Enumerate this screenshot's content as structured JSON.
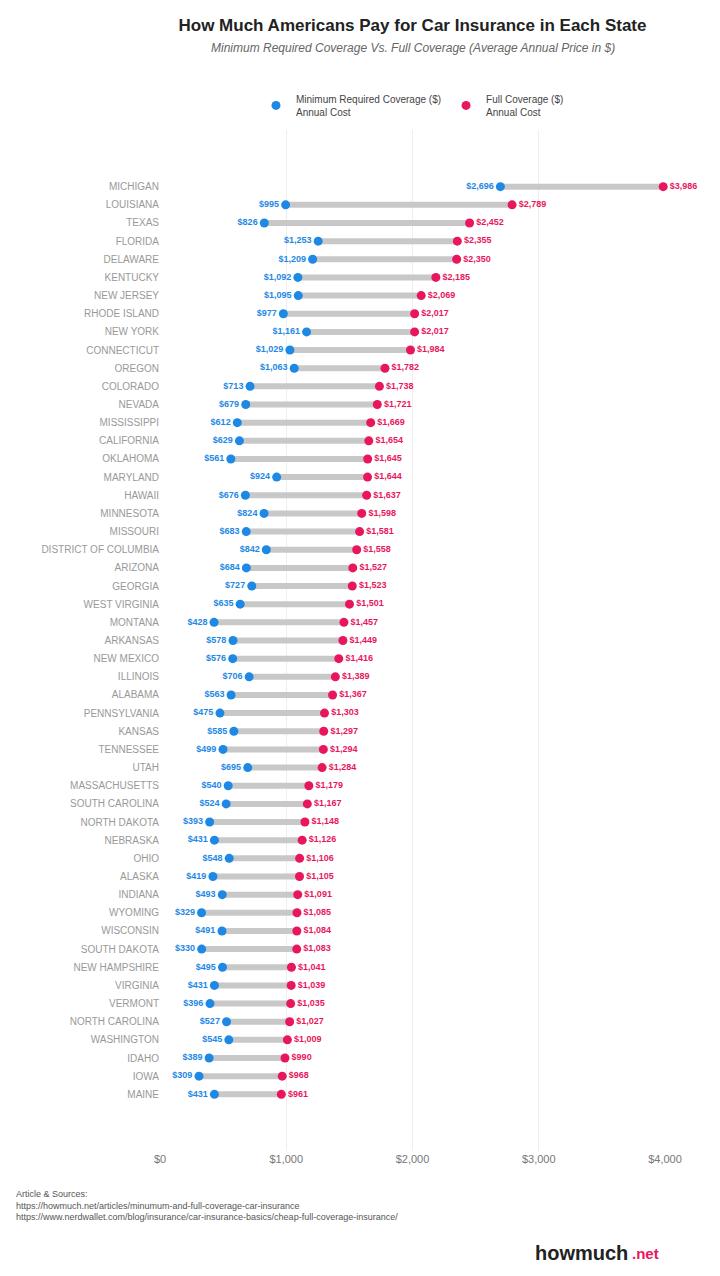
{
  "chart_data": {
    "type": "dumbbell",
    "title": "How Much Americans Pay for Car Insurance in Each State",
    "subtitle": "Minimum Required Coverage Vs. Full Coverage (Average Annual Price in $)",
    "orientation": "horizontal",
    "color": "#c8c8c8",
    "categories": [
      "MICHIGAN",
      "LOUISIANA",
      "TEXAS",
      "FLORIDA",
      "DELAWARE",
      "KENTUCKY",
      "NEW JERSEY",
      "RHODE ISLAND",
      "NEW YORK",
      "CONNECTICUT",
      "OREGON",
      "COLORADO",
      "NEVADA",
      "MISSISSIPPI",
      "CALIFORNIA",
      "OKLAHOMA",
      "MARYLAND",
      "HAWAII",
      "MINNESOTA",
      "MISSOURI",
      "DISTRICT OF COLUMBIA",
      "ARIZONA",
      "GEORGIA",
      "WEST VIRGINIA",
      "MONTANA",
      "ARKANSAS",
      "NEW MEXICO",
      "ILLINOIS",
      "ALABAMA",
      "PENNSYLVANIA",
      "KANSAS",
      "TENNESSEE",
      "UTAH",
      "MASSACHUSETTS",
      "SOUTH CAROLINA",
      "NORTH DAKOTA",
      "NEBRASKA",
      "OHIO",
      "ALASKA",
      "INDIANA",
      "WYOMING",
      "WISCONSIN",
      "SOUTH DAKOTA",
      "NEW HAMPSHIRE",
      "VIRGINIA",
      "VERMONT",
      "NORTH CAROLINA",
      "WASHINGTON",
      "IDAHO",
      "IOWA",
      "MAINE"
    ],
    "series": [
      {
        "name": "Minimum Required Coverage ($)\nAnnual Cost",
        "color": "#1e88e5",
        "values": [
          2696,
          995,
          826,
          1253,
          1209,
          1092,
          1095,
          977,
          1161,
          1029,
          1063,
          713,
          679,
          612,
          629,
          561,
          924,
          676,
          824,
          683,
          842,
          684,
          727,
          635,
          428,
          578,
          576,
          706,
          563,
          475,
          585,
          499,
          695,
          540,
          524,
          393,
          431,
          548,
          419,
          493,
          329,
          491,
          330,
          495,
          431,
          396,
          527,
          545,
          389,
          309,
          431
        ],
        "value_labels": [
          "$2,696",
          "$995",
          "$826",
          "$1,253",
          "$1,209",
          "$1,092",
          "$1,095",
          "$977",
          "$1,161",
          "$1,029",
          "$1,063",
          "$713",
          "$679",
          "$612",
          "$629",
          "$561",
          "$924",
          "$676",
          "$824",
          "$683",
          "$842",
          "$684",
          "$727",
          "$635",
          "$428",
          "$578",
          "$576",
          "$706",
          "$563",
          "$475",
          "$585",
          "$499",
          "$695",
          "$540",
          "$524",
          "$393",
          "$431",
          "$548",
          "$419",
          "$493",
          "$329",
          "$491",
          "$330",
          "$495",
          "$431",
          "$396",
          "$527",
          "$545",
          "$389",
          "$309",
          "$431"
        ]
      },
      {
        "name": "Full Coverage ($)\nAnnual Cost",
        "color": "#e8175d",
        "values": [
          3986,
          2789,
          2452,
          2355,
          2350,
          2185,
          2069,
          2017,
          2017,
          1984,
          1782,
          1738,
          1721,
          1669,
          1654,
          1645,
          1644,
          1637,
          1598,
          1581,
          1558,
          1527,
          1523,
          1501,
          1457,
          1449,
          1416,
          1389,
          1367,
          1303,
          1297,
          1294,
          1284,
          1179,
          1167,
          1148,
          1126,
          1106,
          1105,
          1091,
          1085,
          1084,
          1083,
          1041,
          1039,
          1035,
          1027,
          1009,
          990,
          968,
          961
        ],
        "value_labels": [
          "$3,986",
          "$2,789",
          "$2,452",
          "$2,355",
          "$2,350",
          "$2,185",
          "$2,069",
          "$2,017",
          "$2,017",
          "$1,984",
          "$1,782",
          "$1,738",
          "$1,721",
          "$1,669",
          "$1,654",
          "$1,645",
          "$1,644",
          "$1,637",
          "$1,598",
          "$1,581",
          "$1,558",
          "$1,527",
          "$1,523",
          "$1,501",
          "$1,457",
          "$1,449",
          "$1,416",
          "$1,389",
          "$1,367",
          "$1,303",
          "$1,297",
          "$1,294",
          "$1,284",
          "$1,179",
          "$1,167",
          "$1,148",
          "$1,126",
          "$1,106",
          "$1,105",
          "$1,091",
          "$1,085",
          "$1,084",
          "$1,083",
          "$1,041",
          "$1,039",
          "$1,035",
          "$1,027",
          "$1,009",
          "$990",
          "$968",
          "$961"
        ]
      }
    ],
    "xlim": [
      0,
      4000
    ],
    "xticks": [
      {
        "value": 0,
        "label": "$0"
      },
      {
        "value": 1000,
        "label": "$1,000"
      },
      {
        "value": 2000,
        "label": "$2,000"
      },
      {
        "value": 3000,
        "label": "$3,000"
      },
      {
        "value": 4000,
        "label": "$4,000"
      }
    ],
    "grid": true,
    "legend": "top",
    "data_labels": true,
    "annotations": [
      "Article & Sources:\nhttps://howmuch.net/articles/minumum-and-full-coverage-car-insurance\nhttps://www.nerdwallet.com/blog/insurance/car-insurance-basics/cheap-full-coverage-insurance/",
      "howmuch",
      ".net"
    ]
  }
}
